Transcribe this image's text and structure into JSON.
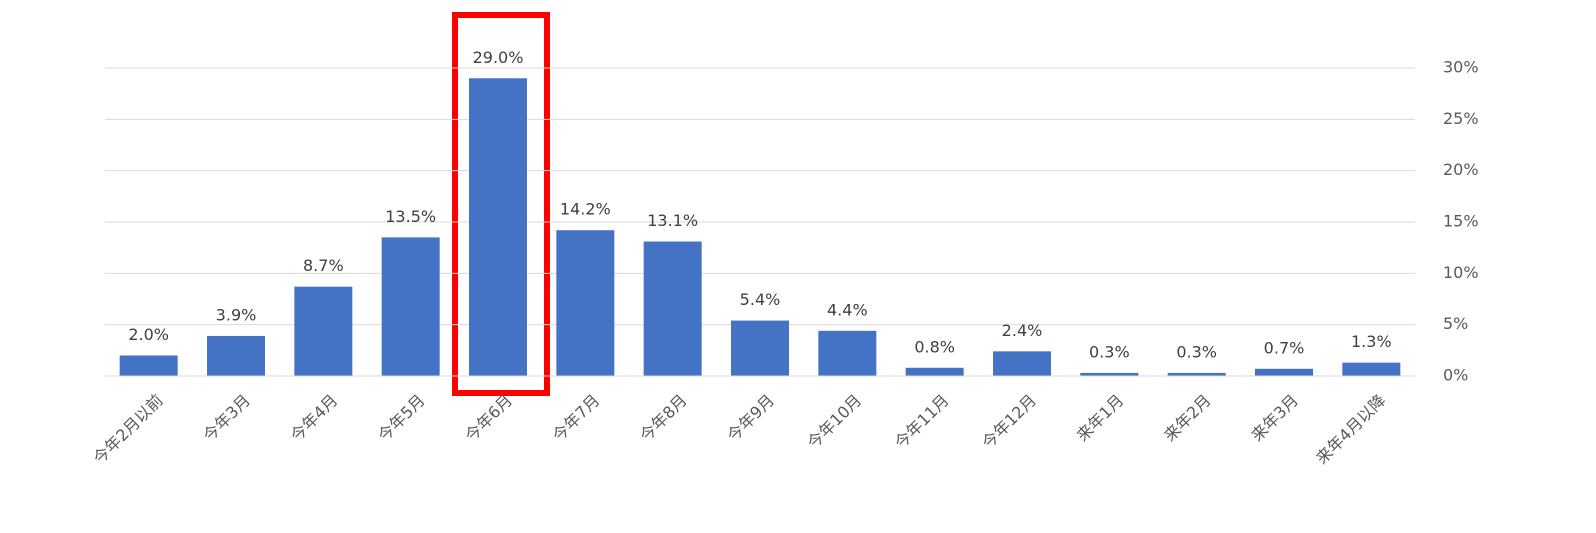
{
  "chart_data": {
    "type": "bar",
    "categories": [
      "今年2月以前",
      "今年3月",
      "今年4月",
      "今年5月",
      "今年6月",
      "今年7月",
      "今年8月",
      "今年9月",
      "今年10月",
      "今年11月",
      "今年12月",
      "来年1月",
      "来年2月",
      "来年3月",
      "来年4月以降"
    ],
    "values": [
      2.0,
      3.9,
      8.7,
      13.5,
      29.0,
      14.2,
      13.1,
      5.4,
      4.4,
      0.8,
      2.4,
      0.3,
      0.3,
      0.7,
      1.3
    ],
    "value_labels": [
      "2.0%",
      "3.9%",
      "8.7%",
      "13.5%",
      "29.0%",
      "14.2%",
      "13.1%",
      "5.4%",
      "4.4%",
      "0.8%",
      "2.4%",
      "0.3%",
      "0.3%",
      "0.7%",
      "1.3%"
    ],
    "color": "#4472c4",
    "ylim": [
      0,
      30
    ],
    "yticks": [
      {
        "value": 0,
        "label": "0%"
      },
      {
        "value": 5,
        "label": "5%"
      },
      {
        "value": 10,
        "label": "10%"
      },
      {
        "value": 15,
        "label": "15%"
      },
      {
        "value": 20,
        "label": "20%"
      },
      {
        "value": 25,
        "label": "25%"
      },
      {
        "value": 30,
        "label": "30%"
      }
    ],
    "grid": true,
    "y_axis_side": "right"
  }
}
